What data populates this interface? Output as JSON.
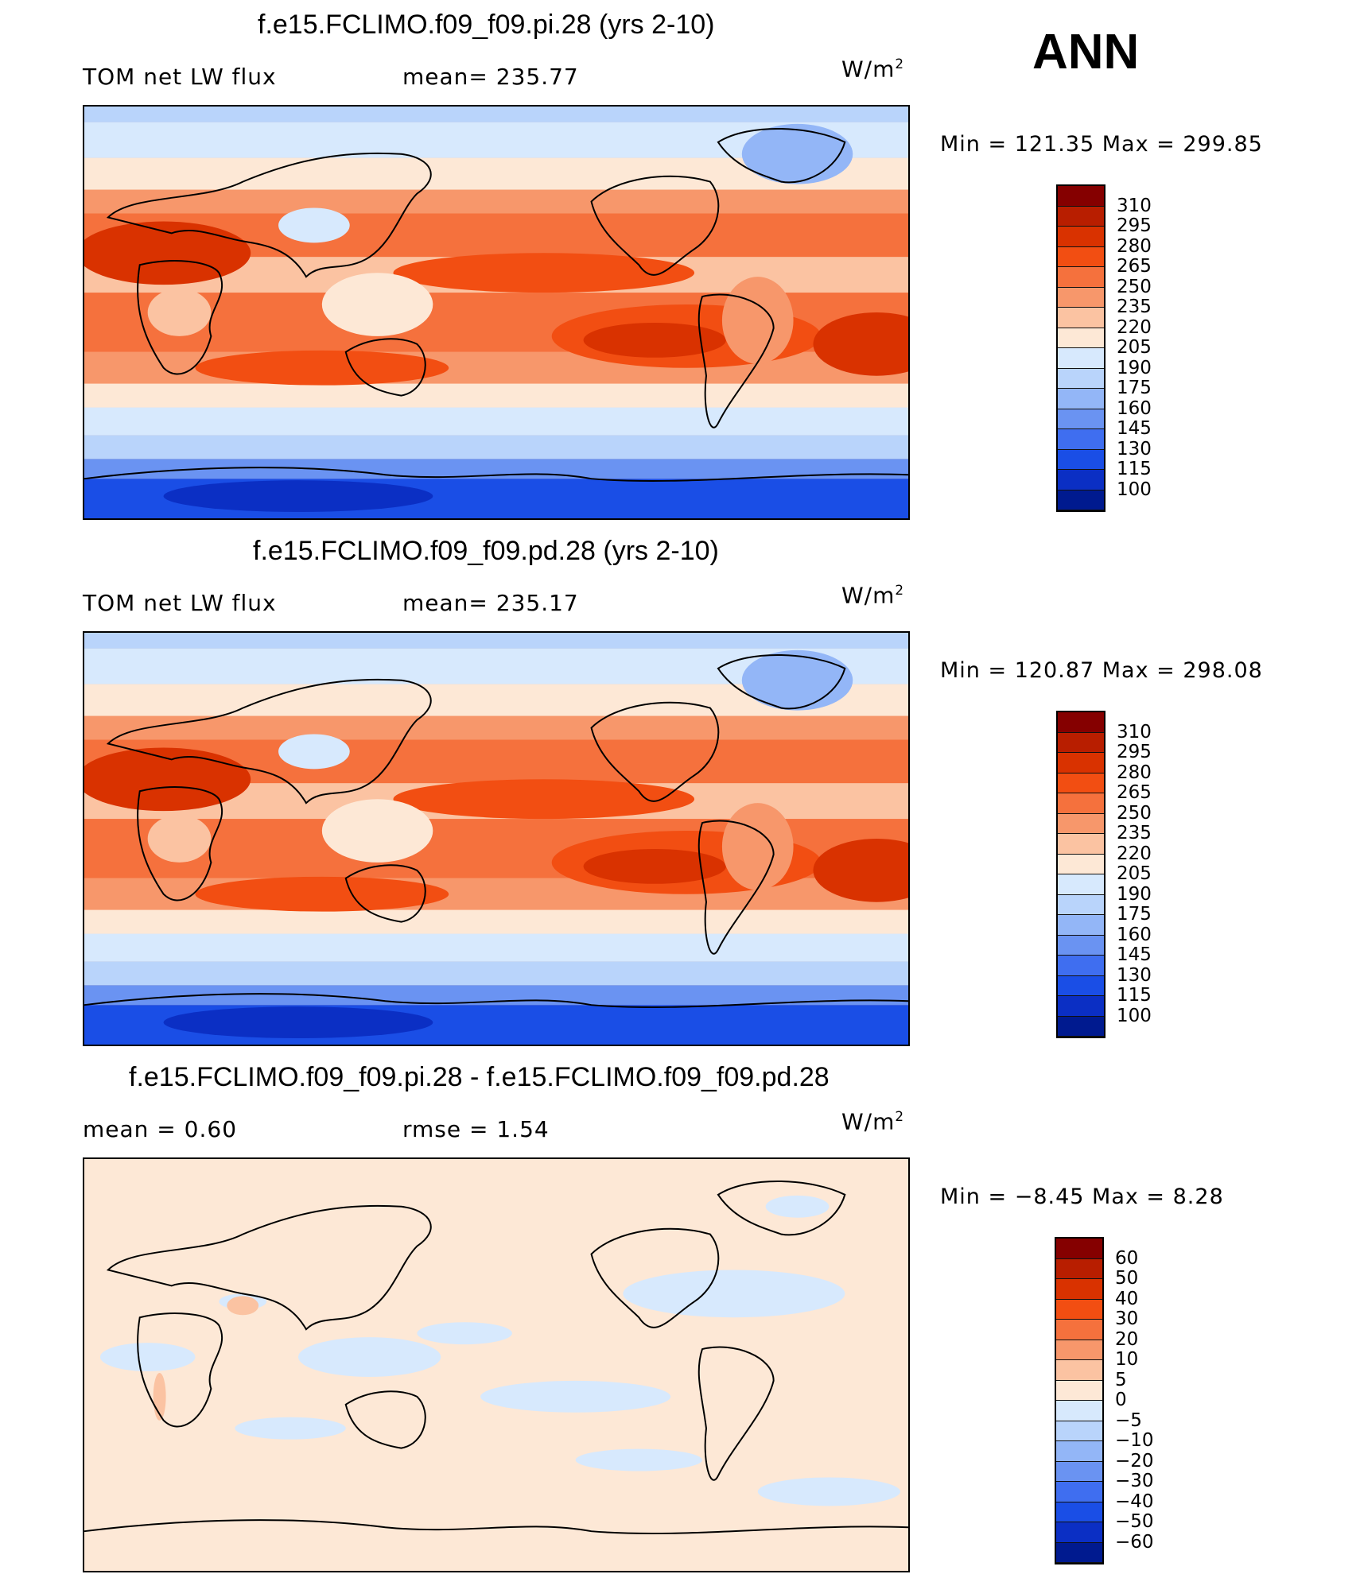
{
  "season_label": "ANN",
  "units_prefix": "W/m",
  "units_exponent": "2",
  "panels": [
    {
      "title": "f.e15.FCLIMO.f09_f09.pi.28 (yrs 2-10)",
      "left_text": "TOM net LW flux",
      "center_text": "mean=  235.77",
      "minmax": "Min  =  121.35  Max  =  299.85",
      "type": "absolute"
    },
    {
      "title": "f.e15.FCLIMO.f09_f09.pd.28 (yrs 2-10)",
      "left_text": "TOM net LW flux",
      "center_text": "mean=  235.17",
      "minmax": "Min  =  120.87  Max  =  298.08",
      "type": "absolute"
    },
    {
      "title": "f.e15.FCLIMO.f09_f09.pi.28 - f.e15.FCLIMO.f09_f09.pd.28",
      "left_text": "mean  =     0.60",
      "center_text": "rmse  =     1.54",
      "minmax": "Min  =    −8.45  Max  =     8.28",
      "type": "difference"
    }
  ],
  "colorbars": {
    "absolute": {
      "labels": [
        "310",
        "295",
        "280",
        "265",
        "250",
        "235",
        "220",
        "205",
        "190",
        "175",
        "160",
        "145",
        "130",
        "115",
        "100"
      ],
      "colors": [
        "#850000",
        "#b81e00",
        "#d93200",
        "#f24e12",
        "#f5713d",
        "#f7976b",
        "#fbc3a2",
        "#fde8d6",
        "#d7e9fd",
        "#b9d4fb",
        "#93b6f7",
        "#6a93f2",
        "#3f6ef0",
        "#1a4ee6",
        "#0b2fc4",
        "#001a8f"
      ]
    },
    "difference": {
      "labels": [
        "60",
        "50",
        "40",
        "30",
        "20",
        "10",
        "5",
        "0",
        "−5",
        "−10",
        "−20",
        "−30",
        "−40",
        "−50",
        "−60"
      ],
      "colors": [
        "#850000",
        "#b81e00",
        "#d93200",
        "#f24e12",
        "#f5713d",
        "#f7976b",
        "#fbc3a2",
        "#fde8d6",
        "#d7e9fd",
        "#b9d4fb",
        "#93b6f7",
        "#6a93f2",
        "#3f6ef0",
        "#1a4ee6",
        "#0b2fc4",
        "#001a8f"
      ]
    }
  }
}
